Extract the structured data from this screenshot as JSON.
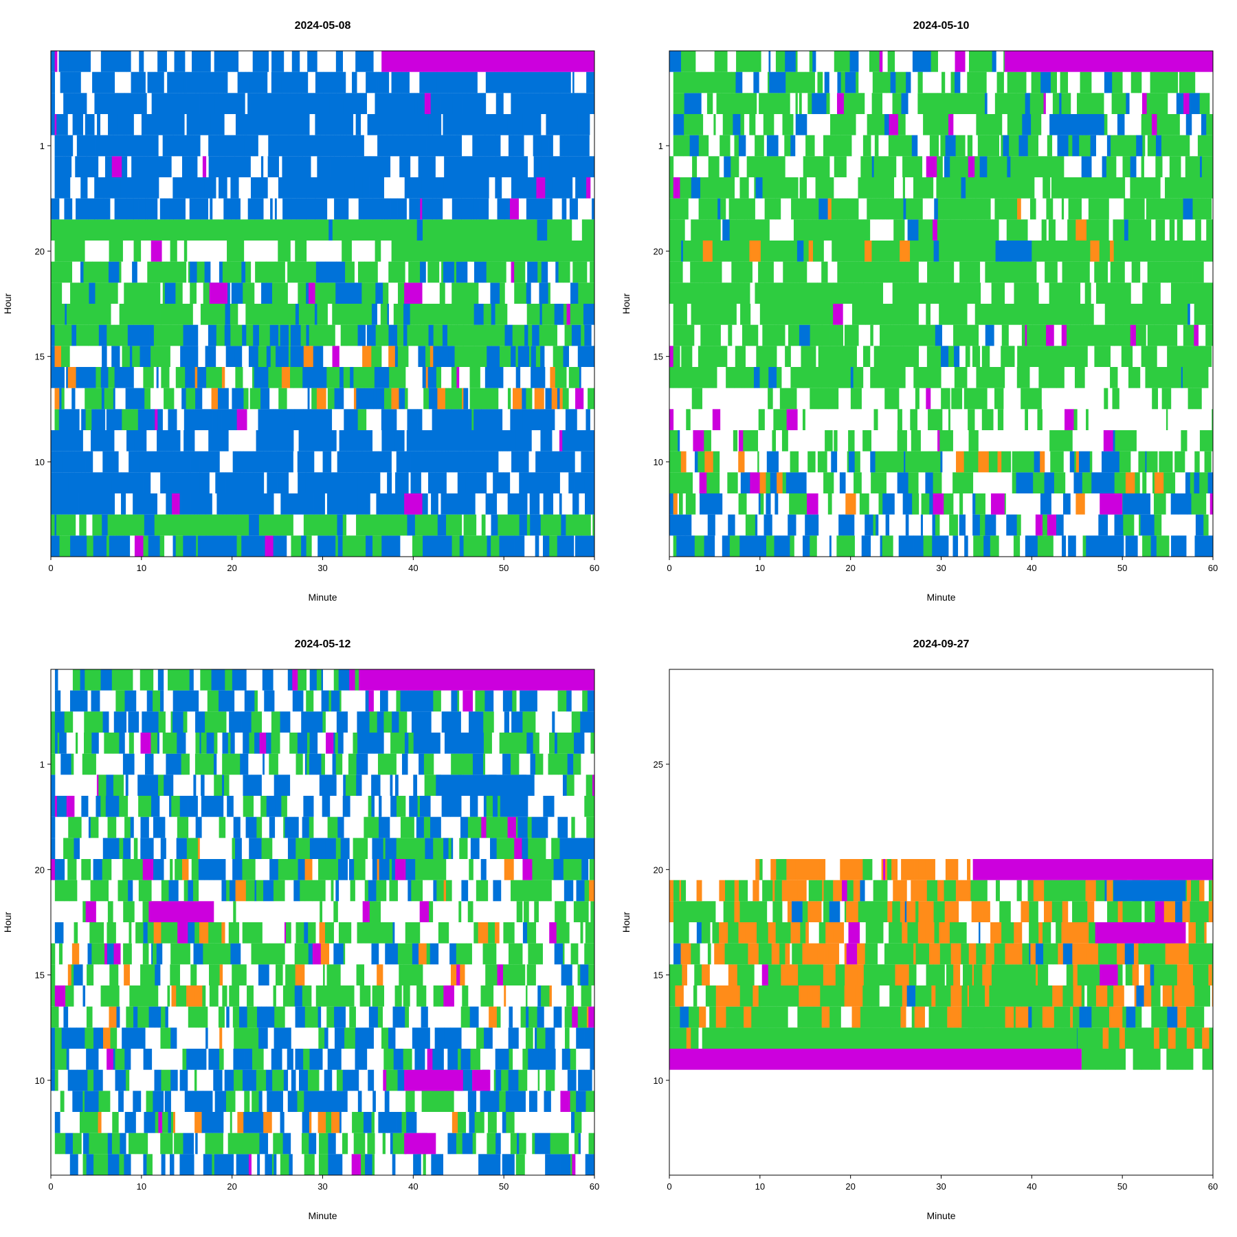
{
  "chart_data": [
    {
      "type": "heatmap",
      "title": "2024-05-08",
      "xlabel": "Minute",
      "ylabel": "Hour",
      "xlim": [
        0,
        60
      ],
      "xticks": [
        0,
        10,
        20,
        30,
        40,
        50,
        60
      ],
      "ylim": [
        5.5,
        29.5
      ],
      "yticks": [
        10,
        15,
        20,
        1
      ],
      "rows": [
        {
          "y": 6,
          "p": [
            0.55,
            0.0,
            0.35,
            0.1
          ],
          "seed": 11
        },
        {
          "y": 7,
          "p": [
            0.15,
            0.0,
            0.75,
            0.1
          ],
          "seed": 12
        },
        {
          "y": 8,
          "p": [
            0.8,
            0.0,
            0.0,
            0.2
          ],
          "seed": 13,
          "blocks": [
            [
              39,
              41,
              "magenta"
            ]
          ]
        },
        {
          "y": 9,
          "p": [
            0.8,
            0.0,
            0.0,
            0.2
          ],
          "seed": 14
        },
        {
          "y": 10,
          "p": [
            0.85,
            0.0,
            0.0,
            0.15
          ],
          "seed": 15
        },
        {
          "y": 11,
          "p": [
            0.8,
            0.0,
            0.0,
            0.2
          ],
          "seed": 16
        },
        {
          "y": 12,
          "p": [
            0.7,
            0.0,
            0.05,
            0.25
          ],
          "seed": 17
        },
        {
          "y": 13,
          "p": [
            0.3,
            0.1,
            0.3,
            0.3
          ],
          "seed": 18
        },
        {
          "y": 14,
          "p": [
            0.4,
            0.05,
            0.3,
            0.25
          ],
          "seed": 19
        },
        {
          "y": 15,
          "p": [
            0.4,
            0.05,
            0.3,
            0.25
          ],
          "seed": 20
        },
        {
          "y": 16,
          "p": [
            0.3,
            0.0,
            0.6,
            0.1
          ],
          "seed": 21
        },
        {
          "y": 17,
          "p": [
            0.1,
            0.0,
            0.8,
            0.1
          ],
          "seed": 22
        },
        {
          "y": 18,
          "p": [
            0.2,
            0.0,
            0.55,
            0.25
          ],
          "seed": 23,
          "blocks": [
            [
              17.5,
              19.5,
              "magenta"
            ],
            [
              39,
              41,
              "magenta"
            ]
          ]
        },
        {
          "y": 19,
          "p": [
            0.15,
            0.0,
            0.6,
            0.25
          ],
          "seed": 24
        },
        {
          "y": 20,
          "p": [
            0.0,
            0.0,
            0.35,
            0.65
          ],
          "seed": 25,
          "blocks": [
            [
              39,
              60,
              "green"
            ]
          ]
        },
        {
          "y": 21,
          "p": [
            0.05,
            0.0,
            0.85,
            0.1
          ],
          "seed": 26
        },
        {
          "y": 22,
          "p": [
            0.75,
            0.0,
            0.0,
            0.25
          ],
          "seed": 27
        },
        {
          "y": 23,
          "p": [
            0.75,
            0.0,
            0.0,
            0.25
          ],
          "seed": 28
        },
        {
          "y": 24,
          "p": [
            0.85,
            0.0,
            0.0,
            0.15
          ],
          "seed": 29
        },
        {
          "y": 25,
          "p": [
            0.8,
            0.0,
            0.0,
            0.2
          ],
          "seed": 30
        },
        {
          "y": 26,
          "p": [
            0.8,
            0.0,
            0.0,
            0.2
          ],
          "seed": 31
        },
        {
          "y": 27,
          "p": [
            0.85,
            0.0,
            0.0,
            0.15
          ],
          "seed": 32
        },
        {
          "y": 28,
          "p": [
            0.85,
            0.0,
            0.0,
            0.15
          ],
          "seed": 33
        },
        {
          "y": 29,
          "p": [
            0.6,
            0.0,
            0.0,
            0.4
          ],
          "seed": 34,
          "cut": 36.5,
          "blocks": [
            [
              36.5,
              60,
              "magenta"
            ]
          ]
        }
      ]
    },
    {
      "type": "heatmap",
      "title": "2024-05-10",
      "xlabel": "Minute",
      "ylabel": "Hour",
      "xlim": [
        0,
        60
      ],
      "xticks": [
        0,
        10,
        20,
        30,
        40,
        50,
        60
      ],
      "ylim": [
        5.5,
        29.5
      ],
      "yticks": [
        10,
        15,
        20,
        1
      ],
      "rows": [
        {
          "y": 6,
          "p": [
            0.4,
            0.0,
            0.35,
            0.25
          ],
          "seed": 41
        },
        {
          "y": 7,
          "p": [
            0.4,
            0.0,
            0.15,
            0.45
          ],
          "seed": 42
        },
        {
          "y": 8,
          "p": [
            0.25,
            0.05,
            0.3,
            0.4
          ],
          "seed": 43,
          "blocks": [
            [
              47.5,
              50,
              "magenta"
            ],
            [
              35.5,
              37,
              "magenta"
            ]
          ]
        },
        {
          "y": 9,
          "p": [
            0.2,
            0.03,
            0.4,
            0.37
          ],
          "seed": 44
        },
        {
          "y": 10,
          "p": [
            0.25,
            0.05,
            0.45,
            0.25
          ],
          "seed": 45
        },
        {
          "y": 11,
          "p": [
            0.03,
            0.0,
            0.45,
            0.52
          ],
          "seed": 46
        },
        {
          "y": 12,
          "p": [
            0.0,
            0.0,
            0.3,
            0.7
          ],
          "seed": 47
        },
        {
          "y": 13,
          "p": [
            0.0,
            0.0,
            0.35,
            0.65
          ],
          "seed": 48
        },
        {
          "y": 14,
          "p": [
            0.02,
            0.0,
            0.75,
            0.23
          ],
          "seed": 49
        },
        {
          "y": 15,
          "p": [
            0.02,
            0.0,
            0.75,
            0.23
          ],
          "seed": 50
        },
        {
          "y": 16,
          "p": [
            0.02,
            0.0,
            0.8,
            0.18
          ],
          "seed": 51
        },
        {
          "y": 17,
          "p": [
            0.02,
            0.0,
            0.85,
            0.13
          ],
          "seed": 52
        },
        {
          "y": 18,
          "p": [
            0.0,
            0.0,
            0.85,
            0.15
          ],
          "seed": 53
        },
        {
          "y": 19,
          "p": [
            0.0,
            0.0,
            0.8,
            0.2
          ],
          "seed": 54
        },
        {
          "y": 20,
          "p": [
            0.05,
            0.1,
            0.75,
            0.1
          ],
          "seed": 55,
          "blocks": [
            [
              36,
              40,
              "blue"
            ]
          ]
        },
        {
          "y": 21,
          "p": [
            0.03,
            0.05,
            0.75,
            0.17
          ],
          "seed": 56
        },
        {
          "y": 22,
          "p": [
            0.03,
            0.05,
            0.75,
            0.17
          ],
          "seed": 57
        },
        {
          "y": 23,
          "p": [
            0.05,
            0.0,
            0.75,
            0.2
          ],
          "seed": 58
        },
        {
          "y": 24,
          "p": [
            0.1,
            0.0,
            0.6,
            0.3
          ],
          "seed": 59
        },
        {
          "y": 25,
          "p": [
            0.15,
            0.0,
            0.55,
            0.3
          ],
          "seed": 60
        },
        {
          "y": 26,
          "p": [
            0.2,
            0.0,
            0.45,
            0.35
          ],
          "seed": 61,
          "blocks": [
            [
              43,
              48,
              "blue"
            ]
          ]
        },
        {
          "y": 27,
          "p": [
            0.15,
            0.0,
            0.6,
            0.25
          ],
          "seed": 62
        },
        {
          "y": 28,
          "p": [
            0.1,
            0.0,
            0.5,
            0.4
          ],
          "seed": 63
        },
        {
          "y": 29,
          "p": [
            0.25,
            0.0,
            0.3,
            0.45
          ],
          "seed": 64,
          "cut": 37,
          "blocks": [
            [
              37,
              60,
              "magenta"
            ]
          ]
        }
      ]
    },
    {
      "type": "heatmap",
      "title": "2024-05-12",
      "xlabel": "Minute",
      "ylabel": "Hour",
      "xlim": [
        0,
        60
      ],
      "xticks": [
        0,
        10,
        20,
        30,
        40,
        50,
        60
      ],
      "ylim": [
        5.5,
        29.5
      ],
      "yticks": [
        10,
        15,
        20,
        1
      ],
      "rows": [
        {
          "y": 6,
          "p": [
            0.5,
            0.0,
            0.15,
            0.35
          ],
          "seed": 71
        },
        {
          "y": 7,
          "p": [
            0.2,
            0.0,
            0.55,
            0.25
          ],
          "seed": 72,
          "blocks": [
            [
              39,
              42.5,
              "magenta"
            ]
          ]
        },
        {
          "y": 8,
          "p": [
            0.35,
            0.05,
            0.2,
            0.4
          ],
          "seed": 73
        },
        {
          "y": 9,
          "p": [
            0.4,
            0.0,
            0.2,
            0.4
          ],
          "seed": 74
        },
        {
          "y": 10,
          "p": [
            0.4,
            0.0,
            0.2,
            0.4
          ],
          "seed": 75,
          "blocks": [
            [
              39,
              45.5,
              "magenta"
            ],
            [
              46.5,
              48.5,
              "magenta"
            ]
          ]
        },
        {
          "y": 11,
          "p": [
            0.35,
            0.05,
            0.2,
            0.4
          ],
          "seed": 76
        },
        {
          "y": 12,
          "p": [
            0.4,
            0.05,
            0.15,
            0.4
          ],
          "seed": 77
        },
        {
          "y": 13,
          "p": [
            0.25,
            0.05,
            0.35,
            0.35
          ],
          "seed": 78
        },
        {
          "y": 14,
          "p": [
            0.05,
            0.05,
            0.45,
            0.45
          ],
          "seed": 79
        },
        {
          "y": 15,
          "p": [
            0.1,
            0.1,
            0.4,
            0.4
          ],
          "seed": 80
        },
        {
          "y": 16,
          "p": [
            0.2,
            0.05,
            0.4,
            0.35
          ],
          "seed": 81
        },
        {
          "y": 17,
          "p": [
            0.05,
            0.05,
            0.55,
            0.35
          ],
          "seed": 82
        },
        {
          "y": 18,
          "p": [
            0.0,
            0.0,
            0.25,
            0.75
          ],
          "seed": 83,
          "blocks": [
            [
              10.8,
              18,
              "magenta"
            ]
          ]
        },
        {
          "y": 19,
          "p": [
            0.15,
            0.05,
            0.45,
            0.35
          ],
          "seed": 84
        },
        {
          "y": 20,
          "p": [
            0.2,
            0.05,
            0.4,
            0.35
          ],
          "seed": 85
        },
        {
          "y": 21,
          "p": [
            0.3,
            0.05,
            0.3,
            0.35
          ],
          "seed": 86
        },
        {
          "y": 22,
          "p": [
            0.3,
            0.0,
            0.3,
            0.4
          ],
          "seed": 87
        },
        {
          "y": 23,
          "p": [
            0.4,
            0.0,
            0.2,
            0.4
          ],
          "seed": 88
        },
        {
          "y": 24,
          "p": [
            0.4,
            0.0,
            0.15,
            0.45
          ],
          "seed": 89,
          "blocks": [
            [
              42.5,
              52.5,
              "blue"
            ]
          ]
        },
        {
          "y": 25,
          "p": [
            0.25,
            0.0,
            0.35,
            0.4
          ],
          "seed": 90
        },
        {
          "y": 26,
          "p": [
            0.35,
            0.0,
            0.4,
            0.25
          ],
          "seed": 91
        },
        {
          "y": 27,
          "p": [
            0.35,
            0.0,
            0.3,
            0.35
          ],
          "seed": 92
        },
        {
          "y": 28,
          "p": [
            0.45,
            0.0,
            0.15,
            0.4
          ],
          "seed": 93
        },
        {
          "y": 29,
          "p": [
            0.3,
            0.0,
            0.35,
            0.35
          ],
          "seed": 94,
          "cut": 34,
          "blocks": [
            [
              34,
              60,
              "magenta"
            ]
          ]
        }
      ]
    },
    {
      "type": "heatmap",
      "title": "2024-09-27",
      "xlabel": "Minute",
      "ylabel": "Hour",
      "xlim": [
        0,
        60
      ],
      "xticks": [
        0,
        10,
        20,
        30,
        40,
        50,
        60
      ],
      "ylim": [
        5.5,
        29.5
      ],
      "yticks": [
        10,
        15,
        20,
        25
      ],
      "rows": [
        {
          "y": 11,
          "p": [
            0.0,
            0.0,
            0.7,
            0.3
          ],
          "seed": 101,
          "start": 45.5,
          "blocks": [
            [
              0,
              45.5,
              "magenta"
            ]
          ]
        },
        {
          "y": 12,
          "p": [
            0.02,
            0.2,
            0.7,
            0.08
          ],
          "seed": 102,
          "blocks": [
            [
              4,
              45,
              "green"
            ]
          ]
        },
        {
          "y": 13,
          "p": [
            0.05,
            0.35,
            0.5,
            0.1
          ],
          "seed": 103
        },
        {
          "y": 14,
          "p": [
            0.05,
            0.35,
            0.5,
            0.1
          ],
          "seed": 104
        },
        {
          "y": 15,
          "p": [
            0.03,
            0.3,
            0.5,
            0.17
          ],
          "seed": 105,
          "blocks": [
            [
              47.5,
              49.5,
              "magenta"
            ]
          ]
        },
        {
          "y": 16,
          "p": [
            0.03,
            0.35,
            0.45,
            0.17
          ],
          "seed": 106
        },
        {
          "y": 17,
          "p": [
            0.03,
            0.35,
            0.45,
            0.19
          ],
          "seed": 107,
          "blocks": [
            [
              47,
              57,
              "magenta"
            ]
          ]
        },
        {
          "y": 18,
          "p": [
            0.03,
            0.3,
            0.5,
            0.17
          ],
          "seed": 108
        },
        {
          "y": 19,
          "p": [
            0.02,
            0.35,
            0.45,
            0.18
          ],
          "seed": 109,
          "blocks": [
            [
              49,
              57,
              "blue"
            ]
          ]
        },
        {
          "y": 20,
          "p": [
            0.0,
            0.65,
            0.1,
            0.25
          ],
          "seed": 110,
          "start": 9.5,
          "cut": 33.5,
          "blocks": [
            [
              33.5,
              60,
              "magenta"
            ]
          ]
        }
      ]
    }
  ],
  "colors": {
    "blue": "#0072d9",
    "orange": "#ff8c19",
    "green": "#2ecc40",
    "magenta": "#cc00dd",
    "frame": "#000000"
  }
}
